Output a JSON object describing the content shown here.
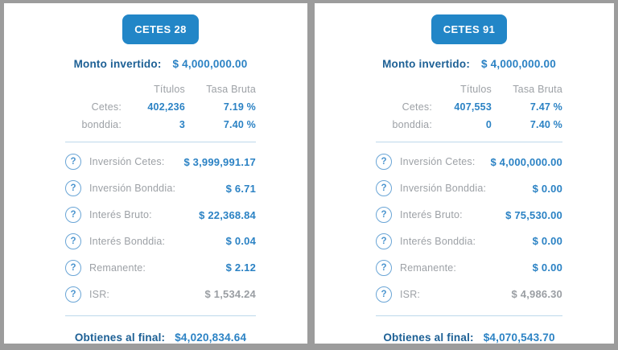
{
  "colors": {
    "frame_gray": "#9c9c9c",
    "card_background": "#ffffff",
    "button_blue": "#2286c7",
    "button_text": "#ffffff",
    "value_blue": "#2b82c4",
    "label_dark_blue": "#1d6095",
    "label_gray": "#9da1a6",
    "muted_value_gray": "#9a9ea3",
    "divider_light_blue": "#bdd9eb",
    "help_icon_blue": "#4a94cf"
  },
  "icons": {
    "help": "?"
  },
  "panels": [
    {
      "button_label": "CETES 28",
      "monto_label": "Monto invertido:",
      "monto_value": "$ 4,000,000.00",
      "table": {
        "headers": [
          "Títulos",
          "Tasa Bruta"
        ],
        "rows": [
          {
            "label": "Cetes:",
            "titulos": "402,236",
            "tasa": "7.19 %"
          },
          {
            "label": "bonddia:",
            "titulos": "3",
            "tasa": "7.40 %"
          }
        ]
      },
      "details": [
        {
          "label": "Inversión Cetes:",
          "value": "$ 3,999,991.17",
          "muted": false
        },
        {
          "label": "Inversión Bonddia:",
          "value": "$ 6.71",
          "muted": false
        },
        {
          "label": "Interés Bruto:",
          "value": "$ 22,368.84",
          "muted": false
        },
        {
          "label": "Interés Bonddia:",
          "value": "$ 0.04",
          "muted": false
        },
        {
          "label": "Remanente:",
          "value": "$ 2.12",
          "muted": false
        },
        {
          "label": "ISR:",
          "value": "$ 1,534.24",
          "muted": true
        }
      ],
      "footer_label": "Obtienes al final:",
      "footer_value": "$4,020,834.64"
    },
    {
      "button_label": "CETES 91",
      "monto_label": "Monto invertido:",
      "monto_value": "$ 4,000,000.00",
      "table": {
        "headers": [
          "Títulos",
          "Tasa Bruta"
        ],
        "rows": [
          {
            "label": "Cetes:",
            "titulos": "407,553",
            "tasa": "7.47 %"
          },
          {
            "label": "bonddia:",
            "titulos": "0",
            "tasa": "7.40 %"
          }
        ]
      },
      "details": [
        {
          "label": "Inversión Cetes:",
          "value": "$ 4,000,000.00",
          "muted": false
        },
        {
          "label": "Inversión Bonddia:",
          "value": "$ 0.00",
          "muted": false
        },
        {
          "label": "Interés Bruto:",
          "value": "$ 75,530.00",
          "muted": false
        },
        {
          "label": "Interés Bonddia:",
          "value": "$ 0.00",
          "muted": false
        },
        {
          "label": "Remanente:",
          "value": "$ 0.00",
          "muted": false
        },
        {
          "label": "ISR:",
          "value": "$ 4,986.30",
          "muted": true
        }
      ],
      "footer_label": "Obtienes al final:",
      "footer_value": "$4,070,543.70"
    }
  ]
}
